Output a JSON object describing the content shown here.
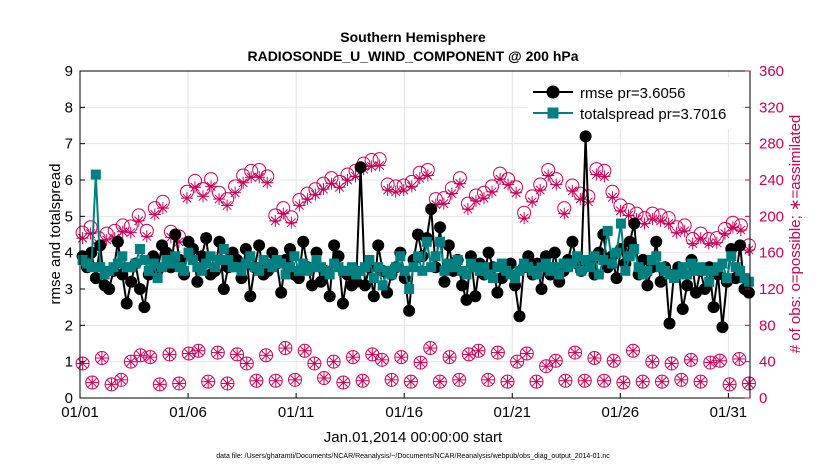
{
  "chart_data": {
    "type": "line",
    "title": "Southern Hemisphere",
    "subtitle": "RADIOSONDE_U_WIND_COMPONENT @ 200 hPa",
    "xlabel": "Jan.01,2014 00:00:00 start",
    "ylabel": "rmse and totalspread",
    "y2label": "# of obs: o=possible; ∗=assimilated",
    "xlim": [
      1,
      32
    ],
    "ylim": [
      0,
      9
    ],
    "y2lim": [
      0,
      360
    ],
    "x_ticks": [
      1,
      6,
      11,
      16,
      21,
      26,
      31
    ],
    "x_tick_labels": [
      "01/01",
      "01/06",
      "01/11",
      "01/16",
      "01/21",
      "01/26",
      "01/31"
    ],
    "y_ticks": [
      0,
      1,
      2,
      3,
      4,
      5,
      6,
      7,
      8,
      9
    ],
    "y2_ticks": [
      0,
      40,
      80,
      120,
      160,
      200,
      240,
      280,
      320,
      360
    ],
    "footer": "data file: /Users/gharamti/Documents/NCAR/Reanalysis/~/Documents/NCAR/Reanalysis/webpub/obs_diag_output_2014-01.nc",
    "legend": [
      {
        "label": "rmse pr=3.6056",
        "color": "#000000",
        "marker": "circle"
      },
      {
        "label": "totalspread pr=3.7016",
        "color": "#008080",
        "marker": "square"
      }
    ],
    "series": [
      {
        "name": "rmse",
        "color": "#000000",
        "axis": "left",
        "values": [
          3.9,
          3.6,
          4.0,
          3.3,
          4.2,
          3.1,
          3.0,
          3.5,
          4.3,
          3.4,
          2.6,
          3.2,
          3.7,
          3.0,
          2.5,
          3.4,
          3.9,
          3.5,
          4.2,
          4.0,
          3.6,
          4.5,
          3.8,
          3.4,
          4.3,
          4.1,
          3.2,
          3.9,
          4.4,
          3.4,
          3.5,
          4.3,
          3.0,
          3.6,
          4.0,
          3.8,
          3.3,
          4.1,
          2.8,
          3.6,
          4.2,
          3.4,
          3.5,
          4.0,
          3.7,
          2.9,
          3.8,
          4.1,
          3.4,
          3.3,
          4.3,
          3.6,
          3.1,
          4.0,
          3.2,
          3.5,
          2.8,
          4.2,
          3.9,
          2.6,
          3.4,
          3.1,
          3.2,
          6.35,
          3.1,
          3.6,
          2.8,
          4.2,
          3.5,
          2.9,
          3.4,
          3.6,
          4.0,
          3.3,
          2.4,
          3.8,
          4.5,
          3.9,
          4.4,
          5.2,
          3.6,
          4.7,
          3.2,
          4.2,
          3.5,
          3.8,
          3.1,
          2.7,
          3.9,
          2.8,
          3.7,
          3.4,
          4.0,
          3.6,
          2.9,
          3.3,
          3.6,
          3.7,
          3.1,
          2.25,
          3.6,
          3.9,
          3.4,
          3.7,
          3.0,
          3.9,
          3.4,
          4.0,
          3.2,
          3.5,
          3.8,
          4.3,
          3.7,
          3.5,
          7.2,
          3.7,
          3.4,
          4.0,
          4.5,
          3.6,
          3.9,
          3.3,
          4.1,
          3.7,
          4.3,
          4.8,
          3.4,
          3.8,
          3.1,
          3.6,
          4.3,
          3.2,
          3.6,
          2.05,
          3.4,
          3.6,
          2.45,
          3.1,
          3.8,
          2.9,
          3.5,
          3.0,
          3.6,
          2.5,
          3.4,
          1.95,
          3.2,
          4.1,
          3.3,
          4.2,
          3.0,
          2.9
        ]
      },
      {
        "name": "totalspread",
        "color": "#008080",
        "axis": "left",
        "values": [
          3.8,
          3.7,
          3.6,
          6.15,
          3.6,
          3.4,
          3.5,
          3.6,
          3.7,
          3.9,
          3.6,
          3.6,
          3.7,
          4.1,
          3.8,
          3.5,
          3.7,
          3.3,
          3.6,
          3.8,
          3.7,
          3.9,
          3.6,
          3.5,
          4.0,
          3.8,
          3.6,
          3.5,
          3.7,
          3.9,
          3.6,
          3.8,
          4.1,
          3.8,
          3.6,
          3.6,
          3.5,
          3.7,
          3.9,
          3.6,
          3.5,
          3.8,
          3.7,
          3.6,
          3.8,
          3.7,
          3.4,
          3.6,
          3.9,
          3.5,
          3.7,
          3.5,
          3.6,
          3.8,
          3.6,
          3.5,
          3.4,
          3.7,
          3.6,
          3.5,
          3.5,
          3.6,
          3.4,
          3.5,
          3.6,
          3.8,
          3.3,
          3.6,
          3.1,
          3.5,
          3.4,
          3.6,
          3.9,
          3.5,
          3.0,
          3.6,
          3.9,
          3.5,
          4.3,
          3.6,
          3.9,
          4.3,
          3.5,
          3.7,
          3.6,
          3.8,
          3.5,
          3.4,
          3.7,
          3.6,
          3.5,
          3.6,
          3.4,
          3.3,
          3.6,
          3.7,
          3.5,
          3.4,
          3.3,
          3.5,
          3.7,
          3.6,
          3.5,
          3.4,
          3.6,
          3.7,
          3.5,
          3.6,
          3.4,
          3.7,
          3.6,
          3.7,
          3.9,
          3.5,
          3.8,
          3.6,
          3.9,
          3.4,
          3.8,
          4.6,
          3.7,
          4.0,
          4.8,
          3.5,
          3.9,
          4.1,
          3.6,
          3.4,
          3.5,
          3.8,
          3.9,
          3.6,
          3.5,
          3.4,
          3.3,
          3.4,
          3.6,
          3.4,
          3.7,
          3.5,
          3.6,
          3.5,
          3.2,
          3.5,
          3.6,
          3.7,
          3.3,
          3.9,
          3.6,
          3.5,
          3.3,
          3.2
        ]
      },
      {
        "name": "obs possible (upper)",
        "color": "#c8005a",
        "axis": "right",
        "marker": "circle",
        "values": [
          182,
          188,
          176,
          181,
          184,
          190,
          189,
          201,
          184,
          209,
          216,
          183,
          178,
          227,
          239,
          230,
          241,
          226,
          219,
          233,
          245,
          250,
          251,
          244,
          201,
          209,
          199,
          218,
          225,
          230,
          236,
          242,
          238,
          246,
          250,
          258,
          262,
          263,
          235,
          233,
          234,
          238,
          248,
          251,
          219,
          220,
          231,
          242,
          214,
          223,
          226,
          233,
          247,
          241,
          232,
          204,
          222,
          235,
          251,
          241,
          209,
          234,
          225,
          222,
          252,
          250,
          227,
          212,
          207,
          203,
          198,
          203,
          201,
          198,
          188,
          190,
          175,
          181,
          175,
          176,
          186,
          193,
          190,
          168
        ]
      },
      {
        "name": "obs assimilated (upper)",
        "color": "#c8005a",
        "axis": "right",
        "marker": "star",
        "values": [
          176,
          181,
          170,
          174,
          176,
          183,
          182,
          195,
          178,
          202,
          209,
          177,
          172,
          220,
          232,
          222,
          233,
          219,
          212,
          226,
          237,
          243,
          243,
          237,
          195,
          203,
          193,
          212,
          219,
          224,
          230,
          236,
          232,
          240,
          244,
          252,
          255,
          256,
          229,
          227,
          229,
          233,
          242,
          245,
          213,
          214,
          225,
          236,
          208,
          217,
          220,
          227,
          241,
          235,
          226,
          198,
          216,
          229,
          245,
          235,
          203,
          228,
          219,
          216,
          246,
          244,
          221,
          206,
          201,
          197,
          192,
          197,
          195,
          192,
          182,
          184,
          170,
          176,
          170,
          171,
          181,
          188,
          185,
          163
        ]
      },
      {
        "name": "obs possible (lower)",
        "color": "#c8005a",
        "axis": "right",
        "marker": "circle",
        "values": [
          38,
          17,
          44,
          15,
          20,
          40,
          47,
          45,
          15,
          48,
          16,
          49,
          52,
          18,
          50,
          16,
          48,
          38,
          19,
          47,
          19,
          55,
          20,
          52,
          38,
          22,
          40,
          17,
          45,
          19,
          48,
          42,
          20,
          45,
          18,
          39,
          55,
          18,
          45,
          20,
          48,
          52,
          20,
          50,
          18,
          40,
          49,
          18,
          35,
          41,
          19,
          50,
          19,
          44,
          19,
          41,
          17,
          52,
          18,
          40,
          18,
          38,
          20,
          42,
          18,
          39,
          41,
          15,
          43,
          16
        ]
      },
      {
        "name": "obs assimilated (lower)",
        "color": "#c8005a",
        "axis": "right",
        "marker": "star",
        "values": [
          38,
          17,
          44,
          15,
          20,
          40,
          47,
          45,
          15,
          48,
          16,
          49,
          52,
          18,
          50,
          16,
          48,
          38,
          19,
          47,
          19,
          55,
          20,
          52,
          38,
          22,
          40,
          17,
          45,
          19,
          48,
          42,
          20,
          45,
          18,
          39,
          55,
          18,
          45,
          20,
          48,
          52,
          20,
          50,
          18,
          40,
          49,
          18,
          35,
          41,
          19,
          50,
          19,
          44,
          19,
          41,
          17,
          52,
          18,
          40,
          18,
          38,
          20,
          42,
          18,
          39,
          41,
          15,
          43,
          16
        ]
      }
    ]
  }
}
